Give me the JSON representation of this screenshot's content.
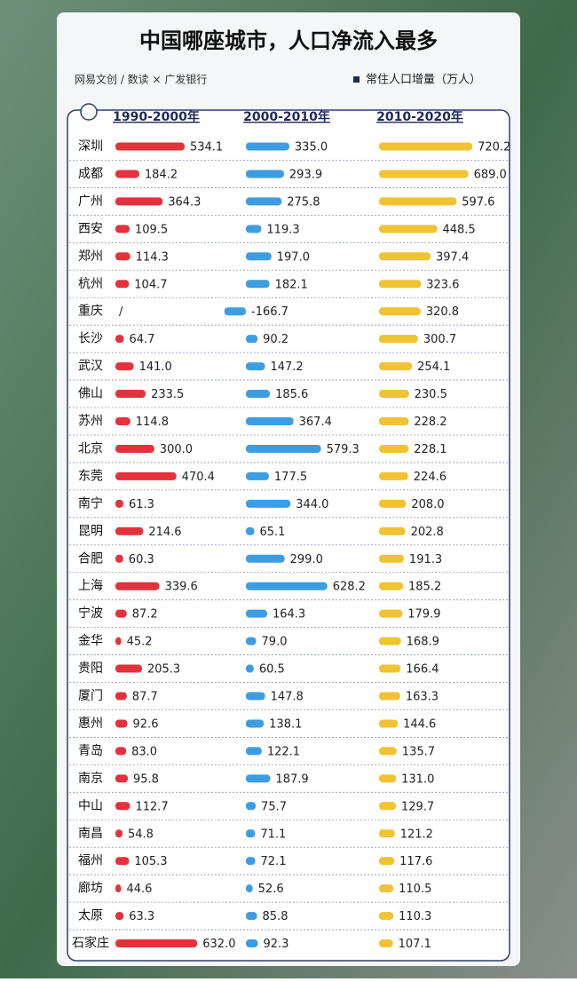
{
  "chart_data": {
    "type": "bar-columns",
    "title": "中国哪座城市，人口净流入最多",
    "source": "网易文创 / 数读 × 广发银行",
    "legend_title": "常住人口增量（万人）",
    "categories": [
      "深圳",
      "成都",
      "广州",
      "西安",
      "郑州",
      "杭州",
      "重庆",
      "长沙",
      "武汉",
      "佛山",
      "苏州",
      "北京",
      "东莞",
      "南宁",
      "昆明",
      "合肥",
      "上海",
      "宁波",
      "金华",
      "贵阳",
      "厦门",
      "惠州",
      "青岛",
      "南京",
      "中山",
      "南昌",
      "福州",
      "廊坊",
      "太原",
      "石家庄"
    ],
    "series": [
      {
        "name": "1990-2000年",
        "color": "#e3323c",
        "values": [
          534.1,
          184.2,
          364.3,
          109.5,
          114.3,
          104.7,
          null,
          64.7,
          141.0,
          233.5,
          114.8,
          300.0,
          470.4,
          61.3,
          214.6,
          60.3,
          339.6,
          87.2,
          45.2,
          205.3,
          87.7,
          92.6,
          83.0,
          95.8,
          112.7,
          54.8,
          105.3,
          44.6,
          63.3,
          632.0
        ],
        "value_labels": [
          "534.1",
          "184.2",
          "364.3",
          "109.5",
          "114.3",
          "104.7",
          "/",
          "64.7",
          "141.0",
          "233.5",
          "114.8",
          "300.0",
          "470.4",
          "61.3",
          "214.6",
          "60.3",
          "339.6",
          "87.2",
          "45.2",
          "205.3",
          "87.7",
          "92.6",
          "83.0",
          "95.8",
          "112.7",
          "54.8",
          "105.3",
          "44.6",
          "63.3",
          "632.0"
        ]
      },
      {
        "name": "2000-2010年",
        "color": "#3d9de3",
        "values": [
          335.0,
          293.9,
          275.8,
          119.3,
          197.0,
          182.1,
          -166.7,
          90.2,
          147.2,
          185.6,
          367.4,
          579.3,
          177.5,
          344.0,
          65.1,
          299.0,
          628.2,
          164.3,
          79.0,
          60.5,
          147.8,
          138.1,
          122.1,
          187.9,
          75.7,
          71.1,
          72.1,
          52.6,
          85.8,
          92.3
        ],
        "value_labels": [
          "335.0",
          "293.9",
          "275.8",
          "119.3",
          "197.0",
          "182.1",
          "-166.7",
          "90.2",
          "147.2",
          "185.6",
          "367.4",
          "579.3",
          "177.5",
          "344.0",
          "65.1",
          "299.0",
          "628.2",
          "164.3",
          "79.0",
          "60.5",
          "147.8",
          "138.1",
          "122.1",
          "187.9",
          "75.7",
          "71.1",
          "72.1",
          "52.6",
          "85.8",
          "92.3"
        ]
      },
      {
        "name": "2010-2020年",
        "color": "#f1c232",
        "values": [
          720.2,
          689.0,
          597.6,
          448.5,
          397.4,
          323.6,
          320.8,
          300.7,
          254.1,
          230.5,
          228.2,
          228.1,
          224.6,
          208.0,
          202.8,
          191.3,
          185.2,
          179.9,
          168.9,
          166.4,
          163.3,
          144.6,
          135.7,
          131.0,
          129.7,
          121.2,
          117.6,
          110.5,
          110.3,
          107.1
        ],
        "value_labels": [
          "720.2",
          "689.0",
          "597.6",
          "448.5",
          "397.4",
          "323.6",
          "320.8",
          "300.7",
          "254.1",
          "230.5",
          "228.2",
          "228.1",
          "224.6",
          "208.0",
          "202.8",
          "191.3",
          "185.2",
          "179.9",
          "168.9",
          "166.4",
          "163.3",
          "144.6",
          "135.7",
          "131.0",
          "129.7",
          "121.2",
          "117.6",
          "110.5",
          "110.3",
          "107.1"
        ]
      }
    ]
  }
}
